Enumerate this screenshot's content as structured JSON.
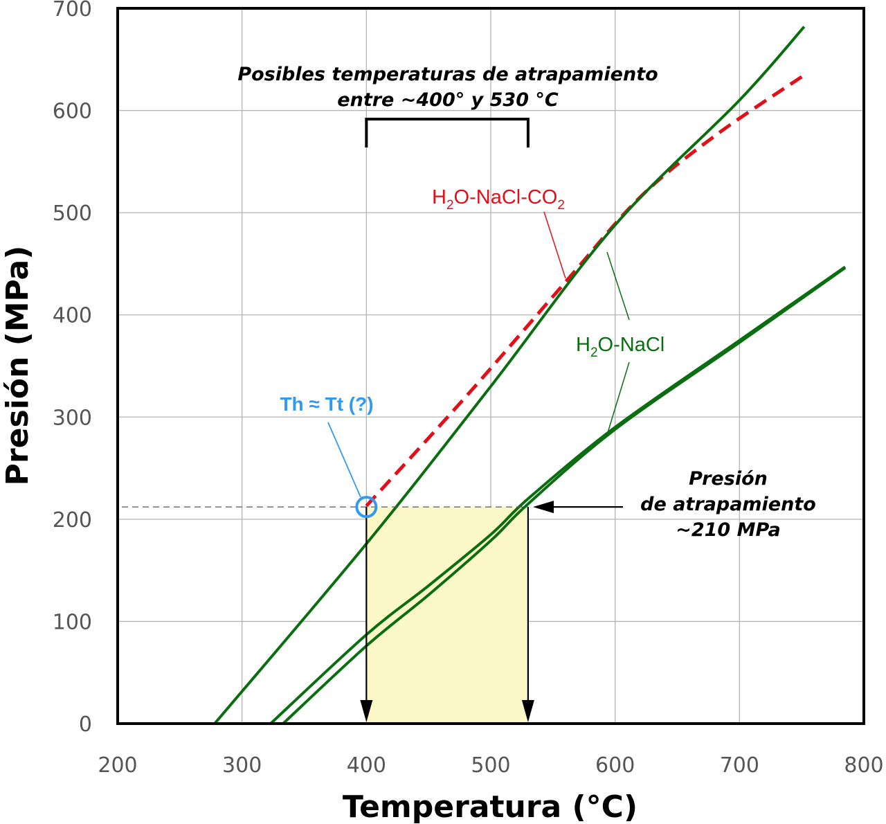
{
  "chart_data": {
    "type": "line",
    "xlabel": "Temperatura (°C)",
    "ylabel": "Presión (MPa)",
    "xlim": [
      200,
      800
    ],
    "ylim": [
      0,
      700
    ],
    "grid": true,
    "x_ticks": [
      "200",
      "300",
      "400",
      "500",
      "600",
      "700",
      "800"
    ],
    "y_ticks": [
      "0",
      "100",
      "200",
      "300",
      "400",
      "500",
      "600",
      "700"
    ],
    "series": [
      {
        "name": "H2O-NaCl-CO2",
        "style": "dashed",
        "color": "#e0101a",
        "x": [
          400,
          480,
          560,
          620,
          680,
          750
        ],
        "y": [
          213,
          320,
          432,
          515,
          575,
          633
        ]
      },
      {
        "name": "H2O-NaCl (1)",
        "style": "solid",
        "color": "#0a6e10",
        "x": [
          278,
          400,
          500,
          600,
          700,
          752
        ],
        "y": [
          0,
          176,
          330,
          488,
          610,
          682
        ]
      },
      {
        "name": "H2O-NaCl (2)",
        "style": "solid",
        "color": "#0a6e10",
        "x": [
          323,
          400,
          450,
          500,
          530,
          600,
          700,
          785
        ],
        "y": [
          0,
          87,
          135,
          185,
          220,
          290,
          375,
          447
        ]
      },
      {
        "name": "H2O-NaCl (3)",
        "style": "solid",
        "color": "#0a6e10",
        "x": [
          333,
          400,
          450,
          500,
          530,
          600,
          700,
          785
        ],
        "y": [
          0,
          76,
          126,
          179,
          215,
          288,
          373,
          446
        ]
      }
    ],
    "labels": {
      "co2_series_parts": [
        "H",
        "2",
        "O-NaCl-CO",
        "2"
      ],
      "nacl_series_parts": [
        "H",
        "2",
        "O-NaCl"
      ],
      "trapping_temp_title": [
        "Posibles temperaturas de atrapamiento",
        "entre ~400° y 530 °C"
      ],
      "trapping_pressure": [
        "Presión",
        "de atrapamiento",
        "~210 MPa"
      ],
      "th_label": "Th ≈ Tt (?)"
    },
    "trapping_pressure_mpa": 210,
    "trapping_temp_range": [
      400,
      530
    ],
    "th_point": {
      "x": 400,
      "y": 212
    }
  },
  "colors": {
    "co2_series": "#e0101a",
    "nacl_series": "#0a6e10",
    "th_marker": "#3399ee",
    "shade": "#fcf8c8",
    "grid": "#b4b4b4"
  }
}
